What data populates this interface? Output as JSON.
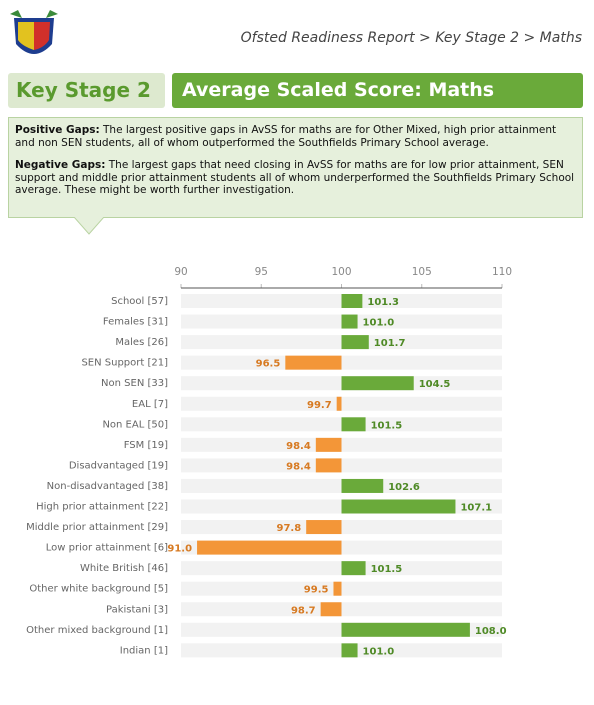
{
  "header": {
    "breadcrumb": "Ofsted Readiness Report > Key Stage 2 > Maths"
  },
  "section": {
    "stage": "Key Stage 2",
    "title": "Average Scaled Score: Maths"
  },
  "summary": {
    "positive": {
      "label": "Positive Gaps:",
      "text": "The largest positive gaps in AvSS for maths are for Other Mixed, high prior attainment and non SEN students, all of whom outperformed the Southfields Primary School average."
    },
    "negative": {
      "label": "Negative Gaps:",
      "text": "The largest gaps that need closing in AvSS for maths are for low prior attainment, SEN support and middle prior attainment students all of whom underperformed the Southfields Primary School average. These might be worth further investigation."
    }
  },
  "chart_data": {
    "type": "diverging-bar",
    "categories": [
      "School [57]",
      "Females [31]",
      "Males [26]",
      "SEN Support [21]",
      "Non SEN [33]",
      "EAL [7]",
      "Non EAL [50]",
      "FSM [19]",
      "Disadvantaged [19]",
      "Non-disadvantaged [38]",
      "High prior attainment [22]",
      "Middle prior attainment [29]",
      "Low prior attainment [6]",
      "White British [46]",
      "Other white background [5]",
      "Pakistani [3]",
      "Other mixed background [1]",
      "Indian [1]"
    ],
    "values": [
      101.3,
      101.0,
      101.7,
      96.5,
      104.5,
      99.7,
      101.5,
      98.4,
      98.4,
      102.6,
      107.1,
      97.8,
      91.0,
      101.5,
      99.5,
      98.7,
      108.0,
      101.0
    ],
    "value_labels": [
      "101.3",
      "101.0",
      "101.7",
      "96.5",
      "104.5",
      "99.7",
      "101.5",
      "98.4",
      "98.4",
      "102.6",
      "107.1",
      "97.8",
      "91.0",
      "101.5",
      "99.5",
      "98.7",
      "108.0",
      "101.0"
    ],
    "xlim": [
      90,
      110
    ],
    "xticks": [
      90,
      95,
      100,
      105,
      110
    ],
    "baseline": 100,
    "colors": {
      "above": "#6aaa3a",
      "below": "#f39638"
    }
  }
}
